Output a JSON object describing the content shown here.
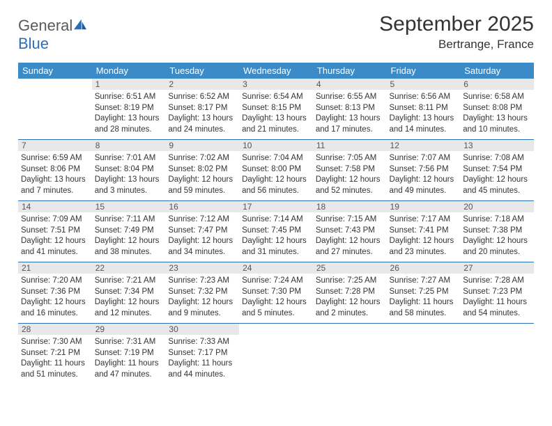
{
  "brand": {
    "part1": "General",
    "part2": "Blue"
  },
  "title": "September 2025",
  "location": "Bertrange, France",
  "colors": {
    "header_bg": "#3b8bc9",
    "header_text": "#ffffff",
    "rule": "#2a6fb5",
    "daynum_bg": "#e8e8e8",
    "text": "#333333",
    "logo_gray": "#5a5a5a",
    "logo_blue": "#2a6fb5"
  },
  "weekdays": [
    "Sunday",
    "Monday",
    "Tuesday",
    "Wednesday",
    "Thursday",
    "Friday",
    "Saturday"
  ],
  "start_offset": 1,
  "days": [
    {
      "n": 1,
      "sr": "6:51 AM",
      "ss": "8:19 PM",
      "dl": "13 hours and 28 minutes."
    },
    {
      "n": 2,
      "sr": "6:52 AM",
      "ss": "8:17 PM",
      "dl": "13 hours and 24 minutes."
    },
    {
      "n": 3,
      "sr": "6:54 AM",
      "ss": "8:15 PM",
      "dl": "13 hours and 21 minutes."
    },
    {
      "n": 4,
      "sr": "6:55 AM",
      "ss": "8:13 PM",
      "dl": "13 hours and 17 minutes."
    },
    {
      "n": 5,
      "sr": "6:56 AM",
      "ss": "8:11 PM",
      "dl": "13 hours and 14 minutes."
    },
    {
      "n": 6,
      "sr": "6:58 AM",
      "ss": "8:08 PM",
      "dl": "13 hours and 10 minutes."
    },
    {
      "n": 7,
      "sr": "6:59 AM",
      "ss": "8:06 PM",
      "dl": "13 hours and 7 minutes."
    },
    {
      "n": 8,
      "sr": "7:01 AM",
      "ss": "8:04 PM",
      "dl": "13 hours and 3 minutes."
    },
    {
      "n": 9,
      "sr": "7:02 AM",
      "ss": "8:02 PM",
      "dl": "12 hours and 59 minutes."
    },
    {
      "n": 10,
      "sr": "7:04 AM",
      "ss": "8:00 PM",
      "dl": "12 hours and 56 minutes."
    },
    {
      "n": 11,
      "sr": "7:05 AM",
      "ss": "7:58 PM",
      "dl": "12 hours and 52 minutes."
    },
    {
      "n": 12,
      "sr": "7:07 AM",
      "ss": "7:56 PM",
      "dl": "12 hours and 49 minutes."
    },
    {
      "n": 13,
      "sr": "7:08 AM",
      "ss": "7:54 PM",
      "dl": "12 hours and 45 minutes."
    },
    {
      "n": 14,
      "sr": "7:09 AM",
      "ss": "7:51 PM",
      "dl": "12 hours and 41 minutes."
    },
    {
      "n": 15,
      "sr": "7:11 AM",
      "ss": "7:49 PM",
      "dl": "12 hours and 38 minutes."
    },
    {
      "n": 16,
      "sr": "7:12 AM",
      "ss": "7:47 PM",
      "dl": "12 hours and 34 minutes."
    },
    {
      "n": 17,
      "sr": "7:14 AM",
      "ss": "7:45 PM",
      "dl": "12 hours and 31 minutes."
    },
    {
      "n": 18,
      "sr": "7:15 AM",
      "ss": "7:43 PM",
      "dl": "12 hours and 27 minutes."
    },
    {
      "n": 19,
      "sr": "7:17 AM",
      "ss": "7:41 PM",
      "dl": "12 hours and 23 minutes."
    },
    {
      "n": 20,
      "sr": "7:18 AM",
      "ss": "7:38 PM",
      "dl": "12 hours and 20 minutes."
    },
    {
      "n": 21,
      "sr": "7:20 AM",
      "ss": "7:36 PM",
      "dl": "12 hours and 16 minutes."
    },
    {
      "n": 22,
      "sr": "7:21 AM",
      "ss": "7:34 PM",
      "dl": "12 hours and 12 minutes."
    },
    {
      "n": 23,
      "sr": "7:23 AM",
      "ss": "7:32 PM",
      "dl": "12 hours and 9 minutes."
    },
    {
      "n": 24,
      "sr": "7:24 AM",
      "ss": "7:30 PM",
      "dl": "12 hours and 5 minutes."
    },
    {
      "n": 25,
      "sr": "7:25 AM",
      "ss": "7:28 PM",
      "dl": "12 hours and 2 minutes."
    },
    {
      "n": 26,
      "sr": "7:27 AM",
      "ss": "7:25 PM",
      "dl": "11 hours and 58 minutes."
    },
    {
      "n": 27,
      "sr": "7:28 AM",
      "ss": "7:23 PM",
      "dl": "11 hours and 54 minutes."
    },
    {
      "n": 28,
      "sr": "7:30 AM",
      "ss": "7:21 PM",
      "dl": "11 hours and 51 minutes."
    },
    {
      "n": 29,
      "sr": "7:31 AM",
      "ss": "7:19 PM",
      "dl": "11 hours and 47 minutes."
    },
    {
      "n": 30,
      "sr": "7:33 AM",
      "ss": "7:17 PM",
      "dl": "11 hours and 44 minutes."
    }
  ],
  "labels": {
    "sunrise": "Sunrise:",
    "sunset": "Sunset:",
    "daylight": "Daylight:"
  }
}
